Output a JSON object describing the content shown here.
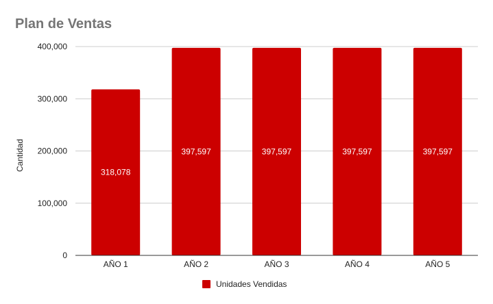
{
  "chart_data": {
    "type": "bar",
    "title": "Plan de Ventas",
    "xlabel": "",
    "ylabel": "Cantidad",
    "categories": [
      "AÑO 1",
      "AÑO 2",
      "AÑO 3",
      "AÑO 4",
      "AÑO 5"
    ],
    "series": [
      {
        "name": "Unidades Vendidas",
        "color": "#cc0000",
        "values": [
          318078,
          397597,
          397597,
          397597,
          397597
        ],
        "labels": [
          "318,078",
          "397,597",
          "397,597",
          "397,597",
          "397,597"
        ]
      }
    ],
    "ylim": [
      0,
      400000
    ],
    "yticks": [
      0,
      100000,
      200000,
      300000,
      400000
    ],
    "ytick_labels": [
      "0",
      "100,000",
      "200,000",
      "300,000",
      "400,000"
    ],
    "grid": true,
    "legend": "bottom"
  }
}
